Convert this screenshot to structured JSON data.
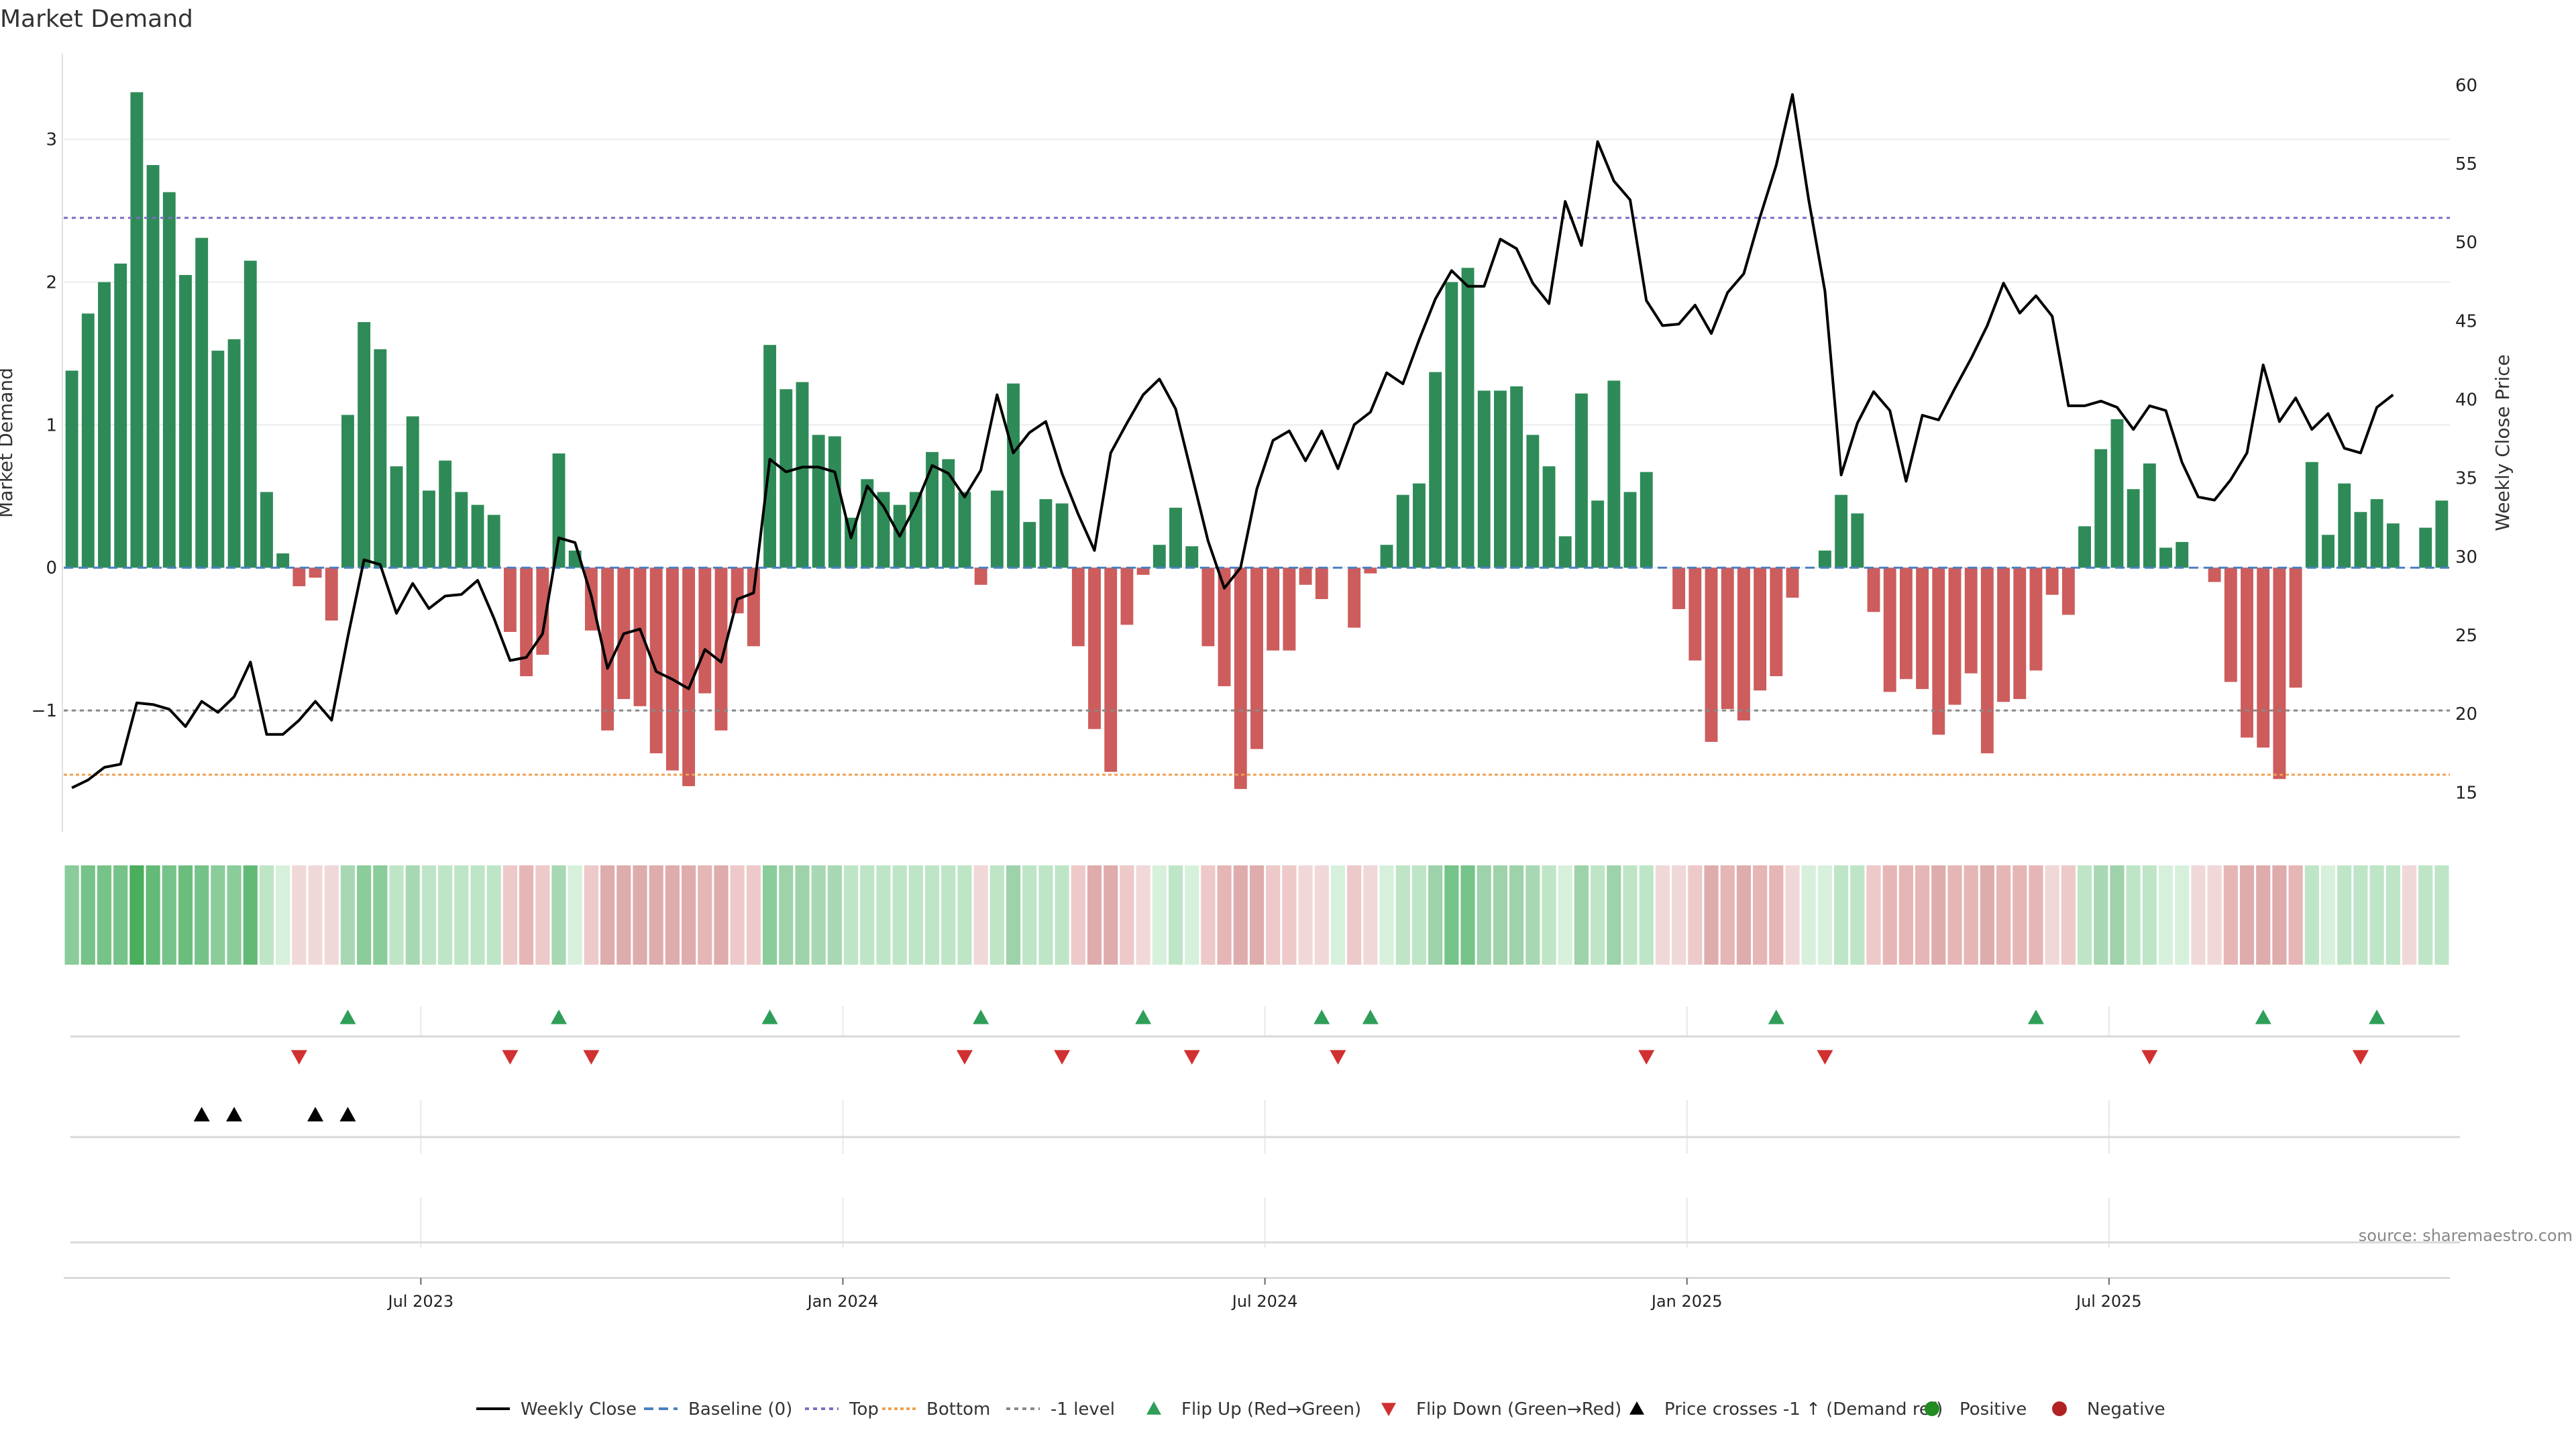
{
  "chart_data": {
    "type": "bar",
    "title": "Market Demand",
    "ylabel": "Market Demand",
    "y2label": "Weekly Close Price",
    "source": "source: sharemaestro.com",
    "ylim": [
      -1.85,
      3.6
    ],
    "y2lim": [
      12.5,
      62
    ],
    "y_ticks": [
      3,
      2,
      1,
      0,
      -1
    ],
    "y_tick_labels": [
      "3",
      "2",
      "1",
      "0",
      "−1"
    ],
    "y2_ticks": [
      60,
      55,
      50,
      45,
      40,
      35,
      30,
      25,
      20,
      15
    ],
    "x_ticks": [
      {
        "week": 22,
        "label": "Jul 2023"
      },
      {
        "week": 48,
        "label": "Jan 2024"
      },
      {
        "week": 74,
        "label": "Jul 2024"
      },
      {
        "week": 100,
        "label": "Jan 2025"
      },
      {
        "week": 126,
        "label": "Jul 2025"
      }
    ],
    "reference_lines": {
      "top": 2.45,
      "bottom": -1.45,
      "minus_one": -1,
      "baseline": 0
    },
    "demand": [
      1.38,
      1.78,
      2.0,
      2.13,
      3.33,
      2.82,
      2.63,
      2.05,
      2.31,
      1.52,
      1.6,
      2.15,
      0.53,
      0.1,
      -0.13,
      -0.07,
      -0.37,
      1.07,
      1.72,
      1.53,
      0.71,
      1.06,
      0.54,
      0.75,
      0.53,
      0.44,
      0.37,
      -0.45,
      -0.76,
      -0.61,
      0.8,
      0.12,
      -0.44,
      -1.14,
      -0.92,
      -0.97,
      -1.3,
      -1.42,
      -1.53,
      -0.88,
      -1.14,
      -0.32,
      -0.55,
      1.56,
      1.25,
      1.3,
      0.93,
      0.92,
      0.35,
      0.62,
      0.53,
      0.44,
      0.53,
      0.81,
      0.76,
      0.53,
      -0.12,
      0.54,
      1.29,
      0.32,
      0.48,
      0.45,
      -0.55,
      -1.13,
      -1.43,
      -0.4,
      -0.05,
      0.16,
      0.42,
      0.15,
      -0.55,
      -0.83,
      -1.55,
      -1.27,
      -0.58,
      -0.58,
      -0.12,
      -0.22,
      0,
      -0.42,
      -0.04,
      0.16,
      0.51,
      0.59,
      1.37,
      2.0,
      2.1,
      1.24,
      1.24,
      1.27,
      0.93,
      0.71,
      0.22,
      1.22,
      0.47,
      1.31,
      0.53,
      0.67,
      0,
      -0.29,
      -0.65,
      -1.22,
      -0.99,
      -1.07,
      -0.86,
      -0.76,
      -0.21,
      0,
      0.12,
      0.51,
      0.38,
      -0.31,
      -0.87,
      -0.78,
      -0.85,
      -1.17,
      -0.96,
      -0.74,
      -1.3,
      -0.94,
      -0.92,
      -0.72,
      -0.19,
      -0.33,
      0.29,
      0.83,
      1.04,
      0.55,
      0.73,
      0.14,
      0.18,
      0,
      -0.1,
      -0.8,
      -1.19,
      -1.26,
      -1.48,
      -0.84,
      0.74,
      0.23,
      0.59,
      0.39,
      0.48,
      0.31,
      0,
      0.28,
      0.47
    ],
    "price": [
      15.3,
      15.8,
      16.6,
      16.8,
      20.7,
      20.6,
      20.3,
      19.2,
      20.8,
      20.1,
      21.1,
      23.3,
      18.7,
      18.7,
      19.6,
      20.8,
      19.6,
      24.9,
      29.8,
      29.5,
      26.4,
      28.3,
      26.7,
      27.5,
      27.6,
      28.5,
      26.1,
      23.4,
      23.6,
      25.1,
      31.2,
      30.9,
      27.5,
      22.9,
      25.1,
      25.4,
      22.7,
      22.2,
      21.6,
      24.1,
      23.3,
      27.3,
      27.7,
      36.2,
      35.4,
      35.7,
      35.7,
      35.4,
      31.2,
      34.5,
      33.2,
      31.3,
      33.3,
      35.8,
      35.3,
      33.8,
      35.5,
      40.3,
      36.6,
      37.9,
      38.6,
      35.3,
      32.7,
      30.4,
      36.6,
      38.5,
      40.3,
      41.3,
      39.4,
      35.2,
      31.0,
      28.0,
      29.3,
      34.3,
      37.4,
      38.0,
      36.1,
      38.0,
      35.6,
      38.4,
      39.2,
      41.7,
      41.0,
      43.8,
      46.4,
      48.2,
      47.2,
      47.2,
      50.2,
      49.6,
      47.4,
      46.1,
      52.6,
      49.8,
      56.4,
      53.9,
      52.7,
      46.3,
      44.7,
      44.8,
      46.0,
      44.2,
      46.8,
      48.0,
      51.6,
      54.9,
      59.4,
      52.7,
      46.9,
      35.2,
      38.5,
      40.5,
      39.3,
      34.8,
      39.0,
      38.7,
      40.7,
      42.6,
      44.7,
      47.4,
      45.5,
      46.6,
      45.3,
      39.6,
      39.6,
      39.9,
      39.5,
      38.1,
      39.6,
      39.3,
      36.0,
      33.8,
      33.6,
      34.9,
      36.6,
      42.2,
      38.6,
      40.1,
      38.1,
      39.1,
      36.9,
      36.6,
      39.5,
      40.3
    ],
    "heat_colors": [
      "#8acc9a",
      "#76c389",
      "#76c389",
      "#76c389",
      "#4aae5c",
      "#63ba77",
      "#76c389",
      "#6bbd7e",
      "#76c389",
      "#8acc9a",
      "#8acc9a",
      "#63ba77",
      "#bfe5c7",
      "#d7f0dc",
      "#f1d8d8",
      "#f1d8d8",
      "#f1d8d8",
      "#a8d8b3",
      "#8acc9a",
      "#8acc9a",
      "#bfe5c7",
      "#a8d8b3",
      "#bfe5c7",
      "#bfe5c7",
      "#bfe5c7",
      "#bfe5c7",
      "#bfe5c7",
      "#edc9c9",
      "#e6b5b5",
      "#edc9c9",
      "#a8d8b3",
      "#d7f0dc",
      "#edc9c9",
      "#deacac",
      "#deacac",
      "#deacac",
      "#deacac",
      "#deacac",
      "#deacac",
      "#e6b5b5",
      "#deacac",
      "#edc9c9",
      "#edc9c9",
      "#8acc9a",
      "#9ed2aa",
      "#9ed2aa",
      "#a8d8b3",
      "#a8d8b3",
      "#bfe5c7",
      "#bfe5c7",
      "#bfe5c7",
      "#bfe5c7",
      "#bfe5c7",
      "#bfe5c7",
      "#bfe5c7",
      "#bfe5c7",
      "#f1d8d8",
      "#bfe5c7",
      "#9ed2aa",
      "#bfe5c7",
      "#bfe5c7",
      "#bfe5c7",
      "#edc9c9",
      "#deacac",
      "#deacac",
      "#edc9c9",
      "#f1d8d8",
      "#d7f0dc",
      "#bfe5c7",
      "#d7f0dc",
      "#edc9c9",
      "#e6b5b5",
      "#deacac",
      "#deacac",
      "#edc9c9",
      "#edc9c9",
      "#f1d8d8",
      "#f1d8d8",
      "#d7f0dc",
      "#edc9c9",
      "#f1d8d8",
      "#d7f0dc",
      "#bfe5c7",
      "#bfe5c7",
      "#9ed2aa",
      "#76c389",
      "#76c389",
      "#9ed2aa",
      "#9ed2aa",
      "#9ed2aa",
      "#a8d8b3",
      "#bfe5c7",
      "#d7f0dc",
      "#9ed2aa",
      "#bfe5c7",
      "#9ed2aa",
      "#bfe5c7",
      "#bfe5c7",
      "#f1d8d8",
      "#f1d8d8",
      "#edc9c9",
      "#deacac",
      "#e6b5b5",
      "#deacac",
      "#e6b5b5",
      "#e6b5b5",
      "#f1d8d8",
      "#d7f0dc",
      "#d7f0dc",
      "#bfe5c7",
      "#bfe5c7",
      "#edc9c9",
      "#e6b5b5",
      "#e6b5b5",
      "#e6b5b5",
      "#deacac",
      "#e6b5b5",
      "#e6b5b5",
      "#deacac",
      "#e6b5b5",
      "#e6b5b5",
      "#e6b5b5",
      "#f1d8d8",
      "#edc9c9",
      "#bfe5c7",
      "#a8d8b3",
      "#9ed2aa",
      "#bfe5c7",
      "#bfe5c7",
      "#d7f0dc",
      "#d7f0dc",
      "#f1d8d8",
      "#f1d8d8",
      "#e6b5b5",
      "#deacac",
      "#deacac",
      "#deacac",
      "#e6b5b5",
      "#bfe5c7",
      "#d7f0dc",
      "#bfe5c7",
      "#bfe5c7",
      "#bfe5c7",
      "#bfe5c7",
      "#f1d8d8",
      "#bfe5c7",
      "#bfe5c7"
    ],
    "flip_up_weeks": [
      17,
      30,
      43,
      56,
      66,
      77,
      80,
      105,
      121,
      135,
      142
    ],
    "flip_down_weeks": [
      14,
      27,
      32,
      55,
      61,
      69,
      78,
      97,
      108,
      128,
      141
    ],
    "price_cross_weeks": [
      8,
      10,
      15,
      17
    ],
    "legend": [
      {
        "key": "weekly-close",
        "label": "Weekly Close"
      },
      {
        "key": "baseline",
        "label": "Baseline (0)"
      },
      {
        "key": "top",
        "label": "Top"
      },
      {
        "key": "bottom",
        "label": "Bottom"
      },
      {
        "key": "minus-one",
        "label": "-1 level"
      },
      {
        "key": "flip-up",
        "label": "Flip Up (Red→Green)"
      },
      {
        "key": "flip-down",
        "label": "Flip Down (Green→Red)"
      },
      {
        "key": "price-cross",
        "label": "Price crosses -1 ↑ (Demand ref)"
      },
      {
        "key": "positive",
        "label": "Positive"
      },
      {
        "key": "negative",
        "label": "Negative"
      }
    ]
  },
  "colors": {
    "positive_bar": "#2e8b57",
    "negative_bar": "#cd5c5c",
    "price_line": "#000000",
    "baseline": "#4a7fc0",
    "top_line": "#7c6cc4",
    "bottom_line": "#f0a050",
    "minus_one_line": "#888888",
    "flip_up": "#2e9e58",
    "flip_down": "#d03030",
    "price_cross": "#000000",
    "positive_dot": "#228b22",
    "negative_dot": "#b22222"
  }
}
